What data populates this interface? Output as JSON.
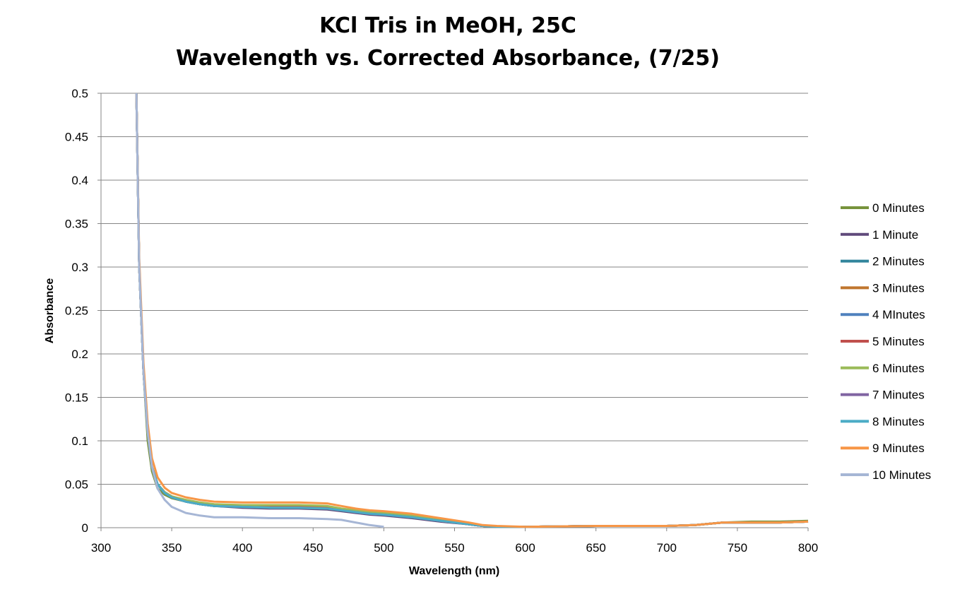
{
  "chart_data": {
    "type": "line",
    "title": "KCl Tris in MeOH, 25C",
    "subtitle": "Wavelength vs. Corrected Absorbance, (7/25)",
    "xlabel": "Wavelength (nm)",
    "ylabel": "Absorbance",
    "xlim": [
      300,
      800
    ],
    "ylim": [
      0,
      0.5
    ],
    "x_ticks": [
      "300",
      "350",
      "400",
      "450",
      "500",
      "550",
      "600",
      "650",
      "700",
      "750",
      "800"
    ],
    "y_ticks": [
      "0",
      "0.05",
      "0.1",
      "0.15",
      "0.2",
      "0.25",
      "0.3",
      "0.35",
      "0.4",
      "0.45",
      "0.5"
    ],
    "grid": "horizontal",
    "legend_position": "right",
    "x": [
      325,
      327,
      330,
      333,
      336,
      340,
      345,
      350,
      360,
      370,
      380,
      400,
      420,
      440,
      460,
      470,
      480,
      490,
      500,
      520,
      540,
      560,
      570,
      580,
      600,
      650,
      700,
      720,
      740,
      760,
      780,
      800
    ],
    "series": [
      {
        "name": "0 Minutes",
        "color": "#77933C",
        "values": [
          0.5,
          0.3,
          0.18,
          0.1,
          0.065,
          0.045,
          0.038,
          0.034,
          0.03,
          0.027,
          0.025,
          0.024,
          0.023,
          0.023,
          0.022,
          0.02,
          0.018,
          0.016,
          0.015,
          0.012,
          0.008,
          0.004,
          0.002,
          0.001,
          0.001,
          0.002,
          0.002,
          0.003,
          0.006,
          0.007,
          0.007,
          0.008
        ]
      },
      {
        "name": "1 Minute",
        "color": "#604A7B",
        "values": [
          0.5,
          0.3,
          0.18,
          0.11,
          0.07,
          0.05,
          0.04,
          0.035,
          0.03,
          0.027,
          0.025,
          0.023,
          0.022,
          0.022,
          0.021,
          0.019,
          0.017,
          0.015,
          0.014,
          0.011,
          0.007,
          0.004,
          0.002,
          0.001,
          0.001,
          0.002,
          0.002,
          0.003,
          0.006,
          0.006,
          0.006,
          0.007
        ]
      },
      {
        "name": "2 Minutes",
        "color": "#31859C",
        "values": [
          0.5,
          0.3,
          0.18,
          0.11,
          0.07,
          0.05,
          0.04,
          0.035,
          0.03,
          0.027,
          0.025,
          0.024,
          0.023,
          0.023,
          0.022,
          0.02,
          0.018,
          0.016,
          0.015,
          0.012,
          0.008,
          0.004,
          0.002,
          0.001,
          0.001,
          0.002,
          0.002,
          0.003,
          0.006,
          0.006,
          0.006,
          0.007
        ]
      },
      {
        "name": "3 Minutes",
        "color": "#C0762E",
        "values": [
          0.5,
          0.3,
          0.18,
          0.11,
          0.07,
          0.05,
          0.041,
          0.036,
          0.031,
          0.028,
          0.026,
          0.025,
          0.024,
          0.024,
          0.023,
          0.021,
          0.019,
          0.017,
          0.016,
          0.013,
          0.008,
          0.004,
          0.002,
          0.001,
          0.001,
          0.002,
          0.002,
          0.003,
          0.006,
          0.006,
          0.006,
          0.007
        ]
      },
      {
        "name": "4 MInutes",
        "color": "#4F81BD",
        "values": [
          0.5,
          0.3,
          0.18,
          0.11,
          0.07,
          0.05,
          0.04,
          0.035,
          0.03,
          0.027,
          0.025,
          0.024,
          0.023,
          0.023,
          0.022,
          0.02,
          0.018,
          0.016,
          0.015,
          0.012,
          0.008,
          0.004,
          0.002,
          0.001,
          0.001,
          0.002,
          0.002,
          0.003,
          0.006,
          0.006,
          0.006,
          0.007
        ]
      },
      {
        "name": "5 Minutes",
        "color": "#C0504D",
        "values": [
          0.5,
          0.3,
          0.18,
          0.11,
          0.07,
          0.05,
          0.041,
          0.036,
          0.031,
          0.028,
          0.026,
          0.025,
          0.024,
          0.024,
          0.023,
          0.021,
          0.019,
          0.017,
          0.016,
          0.013,
          0.008,
          0.004,
          0.002,
          0.001,
          0.001,
          0.002,
          0.002,
          0.003,
          0.006,
          0.006,
          0.006,
          0.007
        ]
      },
      {
        "name": "6 Minutes",
        "color": "#9BBB59",
        "values": [
          0.5,
          0.3,
          0.18,
          0.11,
          0.07,
          0.05,
          0.041,
          0.036,
          0.032,
          0.029,
          0.027,
          0.026,
          0.026,
          0.026,
          0.025,
          0.022,
          0.02,
          0.018,
          0.017,
          0.014,
          0.009,
          0.005,
          0.002,
          0.001,
          0.001,
          0.002,
          0.002,
          0.003,
          0.006,
          0.006,
          0.006,
          0.007
        ]
      },
      {
        "name": "7 Minutes",
        "color": "#8064A2",
        "values": [
          0.5,
          0.3,
          0.18,
          0.11,
          0.07,
          0.05,
          0.04,
          0.035,
          0.03,
          0.027,
          0.025,
          0.024,
          0.023,
          0.023,
          0.022,
          0.02,
          0.018,
          0.016,
          0.015,
          0.012,
          0.008,
          0.004,
          0.002,
          0.001,
          0.001,
          0.002,
          0.002,
          0.003,
          0.006,
          0.006,
          0.006,
          0.007
        ]
      },
      {
        "name": "8 Minutes",
        "color": "#4BACC6",
        "values": [
          0.5,
          0.3,
          0.18,
          0.11,
          0.07,
          0.05,
          0.04,
          0.035,
          0.03,
          0.027,
          0.025,
          0.024,
          0.023,
          0.023,
          0.022,
          0.02,
          0.018,
          0.016,
          0.015,
          0.012,
          0.008,
          0.004,
          0.002,
          0.001,
          0.001,
          0.002,
          0.002,
          0.003,
          0.006,
          0.006,
          0.006,
          0.007
        ]
      },
      {
        "name": "9 Minutes",
        "color": "#F79646",
        "values": [
          0.5,
          0.31,
          0.19,
          0.12,
          0.08,
          0.058,
          0.046,
          0.04,
          0.035,
          0.032,
          0.03,
          0.029,
          0.029,
          0.029,
          0.028,
          0.025,
          0.022,
          0.02,
          0.019,
          0.016,
          0.011,
          0.006,
          0.003,
          0.002,
          0.001,
          0.002,
          0.002,
          0.003,
          0.006,
          0.006,
          0.006,
          0.007
        ]
      },
      {
        "name": "10 Minutes",
        "color": "#A6B6D5",
        "values": [
          0.5,
          0.3,
          0.18,
          0.11,
          0.07,
          0.045,
          0.032,
          0.024,
          0.017,
          0.014,
          0.012,
          0.012,
          0.011,
          0.011,
          0.01,
          0.009,
          0.006,
          0.003,
          0.001,
          null,
          null,
          null,
          null,
          null,
          null,
          null,
          null,
          null,
          null,
          null,
          null,
          null
        ]
      }
    ]
  }
}
